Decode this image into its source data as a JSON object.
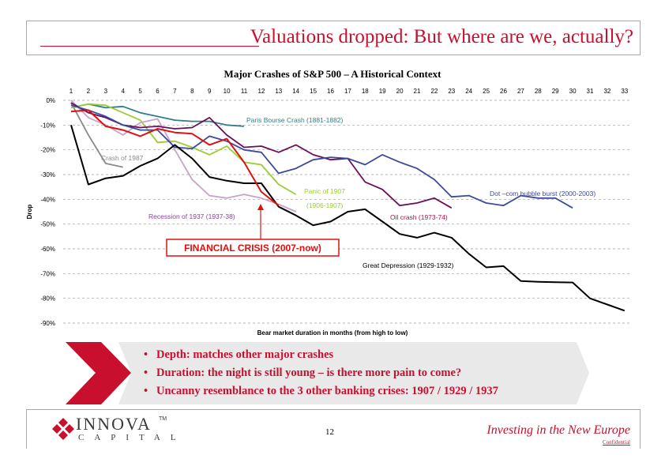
{
  "slide": {
    "title": "Valuations dropped: But where are we, actually?",
    "page_number": "12",
    "tagline": "Investing in the New Europe",
    "confidential": "Confidential",
    "logo": {
      "name": "INNOVA",
      "tm": "TM",
      "sub": "CAPITAL"
    },
    "accent_color": "#c8102e"
  },
  "bullets": [
    "Depth: matches other major crashes",
    "Duration: the night is still young – is there more pain to come?",
    "Uncanny resemblance to the 3 other banking crises: 1907 / 1929 / 1937"
  ],
  "chart_data": {
    "type": "line",
    "title": "Major Crashes of S&P 500 – A Historical Context",
    "xlabel": "Bear market duration in months (from high to low)",
    "ylabel": "Drop",
    "x_ticks": [
      1,
      2,
      3,
      4,
      5,
      6,
      7,
      8,
      9,
      10,
      11,
      12,
      13,
      14,
      15,
      16,
      17,
      18,
      19,
      20,
      21,
      22,
      23,
      24,
      25,
      26,
      27,
      28,
      29,
      30,
      31,
      32,
      33
    ],
    "y_ticks": [
      "0%",
      "-10%",
      "-20%",
      "-30%",
      "-40%",
      "-50%",
      "-60%",
      "-70%",
      "-80%",
      "-90%"
    ],
    "ylim": [
      -90,
      0
    ],
    "grid": "horizontal dashed",
    "series": [
      {
        "name": "Great Depression (1929-1932)",
        "color": "#000000",
        "x": [
          1,
          2,
          3,
          4,
          5,
          6,
          7,
          8,
          9,
          10,
          11,
          12,
          13,
          14,
          15,
          16,
          17,
          18,
          19,
          20,
          21,
          22,
          23,
          24,
          25,
          26,
          27,
          28,
          29,
          30,
          31,
          32,
          33
        ],
        "y": [
          -10,
          -34,
          -31.5,
          -30.5,
          -26.5,
          -23.5,
          -18,
          -23.5,
          -31,
          -32.5,
          -33.5,
          -33.5,
          -43,
          -46.5,
          -50.5,
          -49,
          -45,
          -44,
          -49,
          -54,
          -55.5,
          -53.5,
          -55.5,
          -62,
          -67.5,
          -67,
          -73,
          -73.3,
          -73.5,
          -73.6,
          -80,
          -82.5,
          -85
        ]
      },
      {
        "name": "Paris Bourse Crash (1881-1882)",
        "color": "#2e7f8c",
        "x": [
          1,
          2,
          3,
          4,
          5,
          6,
          7,
          8,
          9,
          10,
          11
        ],
        "y": [
          -3,
          -1.5,
          -3,
          -2.5,
          -5,
          -6.5,
          -8,
          -8.5,
          -8.5,
          -10,
          -10.5
        ]
      },
      {
        "name": "Crash of 1987",
        "color": "#8a8a8a",
        "x": [
          1,
          2,
          3,
          4
        ],
        "y": [
          -1,
          -14,
          -25.5,
          -27
        ]
      },
      {
        "name": "Panic of 1907",
        "label2": "(1906-1907)",
        "color": "#9acd32",
        "x": [
          1,
          2,
          3,
          4,
          5,
          6,
          7,
          8,
          9,
          10,
          11,
          12,
          13,
          14
        ],
        "y": [
          -3,
          -1.5,
          -2,
          -5,
          -8,
          -17,
          -16.5,
          -19,
          -22,
          -18.5,
          -25,
          -26,
          -34,
          -38
        ]
      },
      {
        "name": "Recession of 1937 (1937-38)",
        "color": "#c8a2c8",
        "x": [
          1,
          2,
          3,
          4,
          5,
          6,
          7,
          8,
          9,
          10,
          11,
          12,
          13,
          14
        ],
        "y": [
          0,
          -7,
          -10,
          -14,
          -9,
          -7.5,
          -20,
          -32,
          -38.5,
          -39.5,
          -38,
          -39.5,
          -42,
          -45
        ]
      },
      {
        "name": "Oil crash (1973-74)",
        "color": "#6b0f5a",
        "x": [
          1,
          2,
          3,
          4,
          5,
          6,
          7,
          8,
          9,
          10,
          11,
          12,
          13,
          14,
          15,
          16,
          17,
          18,
          19,
          20,
          21,
          22,
          23
        ],
        "y": [
          -1,
          -5,
          -7,
          -10,
          -11,
          -10.5,
          -11.5,
          -11,
          -7,
          -14,
          -19,
          -18.5,
          -21,
          -18,
          -22,
          -24,
          -23.5,
          -33,
          -36,
          -42.5,
          -41.5,
          -39.5,
          -43.5
        ]
      },
      {
        "name": "Dot –com bubble burst (2000-2003)",
        "color": "#3b4a9c",
        "x": [
          1,
          2,
          3,
          4,
          5,
          6,
          7,
          8,
          9,
          10,
          11,
          12,
          13,
          14,
          15,
          16,
          17,
          18,
          19,
          20,
          21,
          22,
          23,
          24,
          25,
          26,
          27,
          28,
          29,
          30
        ],
        "y": [
          -2,
          -4,
          -6.5,
          -10,
          -12,
          -12,
          -19,
          -19.5,
          -14.5,
          -16.5,
          -20,
          -21,
          -29.5,
          -27.5,
          -24,
          -23,
          -23.5,
          -26,
          -22,
          -25,
          -27.5,
          -32,
          -39,
          -38.5,
          -41.5,
          -42.5,
          -38.5,
          -39.5,
          -39.5,
          -43.5
        ]
      },
      {
        "name": "FINANCIAL CRISIS (2007-now)",
        "color": "#e01010",
        "x": [
          1,
          2,
          3,
          4,
          5,
          6,
          7,
          8,
          9,
          10,
          11,
          12,
          13
        ],
        "y": [
          -4.5,
          -4,
          -10.5,
          -12,
          -14.5,
          -11.5,
          -13,
          -13.5,
          -18,
          -15.5,
          -25,
          -37,
          -42.5
        ]
      }
    ],
    "annotations": [
      "Paris Bourse Crash (1881-1882)",
      "Crash of 1987",
      "Panic of 1907",
      "(1906-1907)",
      "Dot –com bubble burst (2000-2003)",
      "Recession of 1937 (1937-38)",
      "Oil crash (1973-74)",
      "FINANCIAL CRISIS (2007-now)",
      "Great Depression (1929-1932)"
    ]
  }
}
